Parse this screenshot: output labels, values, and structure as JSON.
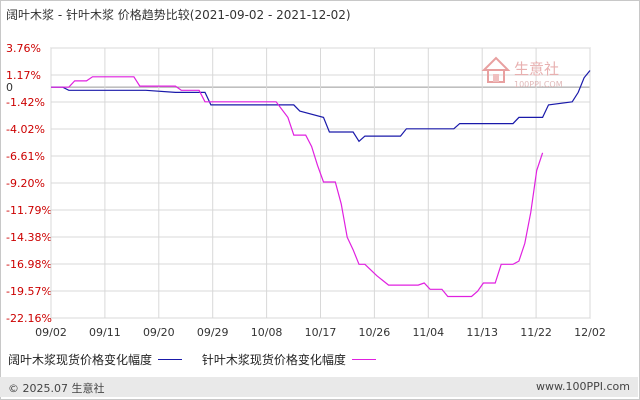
{
  "title": "阔叶木浆 - 针叶木浆 价格趋势比较(2021-09-02 - 2021-12-02)",
  "watermark": {
    "name": "生意社",
    "url": "100PPI.COM"
  },
  "footer": {
    "copyright": "© 2025.07 生意社",
    "site": "www.100PPI.com"
  },
  "colors": {
    "series1": "#1a1aaa",
    "series2": "#e020e0",
    "grid": "#d8d8d8",
    "pos": "#cc0000",
    "neg": "#cc0000",
    "zero": "#333333"
  },
  "chart_data": {
    "type": "line",
    "title": "阔叶木浆 - 针叶木浆 价格趋势比较(2021-09-02 - 2021-12-02)",
    "xlabel": "",
    "ylabel": "",
    "x_tick_labels": [
      "09/02",
      "09/11",
      "09/20",
      "09/29",
      "10/08",
      "10/17",
      "10/26",
      "11/04",
      "11/13",
      "11/22",
      "12/02"
    ],
    "y_tick_labels": [
      "3.76%",
      "1.17%",
      "0",
      "-1.42%",
      "-4.02%",
      "-6.61%",
      "-9.20%",
      "-11.79%",
      "-14.38%",
      "-16.98%",
      "-19.57%",
      "-22.16%"
    ],
    "y_ticks": [
      3.76,
      1.17,
      0,
      -1.42,
      -4.02,
      -6.61,
      -9.2,
      -11.79,
      -14.38,
      -16.98,
      -19.57,
      -22.16
    ],
    "ylim": [
      -22.16,
      3.76
    ],
    "x_range_days": [
      0,
      91
    ],
    "grid": true,
    "legend_position": "bottom",
    "series": [
      {
        "name": "阔叶木浆现货价格变化幅度",
        "points": [
          [
            0,
            0
          ],
          [
            2,
            0
          ],
          [
            3,
            -0.3
          ],
          [
            4,
            -0.3
          ],
          [
            16,
            -0.3
          ],
          [
            21,
            -0.5
          ],
          [
            26,
            -0.5
          ],
          [
            27,
            -1.7
          ],
          [
            28,
            -1.7
          ],
          [
            41,
            -1.7
          ],
          [
            42,
            -2.3
          ],
          [
            46,
            -2.9
          ],
          [
            47,
            -4.3
          ],
          [
            51,
            -4.3
          ],
          [
            52,
            -5.2
          ],
          [
            53,
            -4.7
          ],
          [
            59,
            -4.7
          ],
          [
            60,
            -4.0
          ],
          [
            68,
            -4.0
          ],
          [
            69,
            -3.5
          ],
          [
            78,
            -3.5
          ],
          [
            79,
            -2.9
          ],
          [
            83,
            -2.9
          ],
          [
            84,
            -1.7
          ],
          [
            88,
            -1.4
          ],
          [
            89,
            -0.5
          ],
          [
            90,
            0.9
          ],
          [
            91,
            1.6
          ]
        ]
      },
      {
        "name": "针叶木浆现货价格变化幅度",
        "points": [
          [
            0,
            0
          ],
          [
            3,
            0
          ],
          [
            4,
            0.6
          ],
          [
            6,
            0.6
          ],
          [
            7,
            1.0
          ],
          [
            14,
            1.0
          ],
          [
            15,
            0.1
          ],
          [
            21,
            0.1
          ],
          [
            22,
            -0.3
          ],
          [
            25,
            -0.3
          ],
          [
            26,
            -1.4
          ],
          [
            38,
            -1.4
          ],
          [
            40,
            -2.9
          ],
          [
            41,
            -4.6
          ],
          [
            43,
            -4.6
          ],
          [
            44,
            -5.7
          ],
          [
            45,
            -7.5
          ],
          [
            46,
            -9.1
          ],
          [
            48,
            -9.1
          ],
          [
            49,
            -11.2
          ],
          [
            50,
            -14.4
          ],
          [
            51,
            -15.6
          ],
          [
            52,
            -17.0
          ],
          [
            53,
            -17.0
          ],
          [
            55,
            -18.1
          ],
          [
            57,
            -19.0
          ],
          [
            62,
            -19.0
          ],
          [
            63,
            -18.8
          ],
          [
            64,
            -19.4
          ],
          [
            66,
            -19.4
          ],
          [
            67,
            -20.1
          ],
          [
            71,
            -20.1
          ],
          [
            72,
            -19.6
          ],
          [
            73,
            -18.8
          ],
          [
            75,
            -18.8
          ],
          [
            76,
            -17.0
          ],
          [
            78,
            -17.0
          ],
          [
            79,
            -16.7
          ],
          [
            80,
            -15.0
          ],
          [
            81,
            -12.0
          ],
          [
            82,
            -8.0
          ],
          [
            83,
            -6.3
          ]
        ]
      }
    ]
  }
}
